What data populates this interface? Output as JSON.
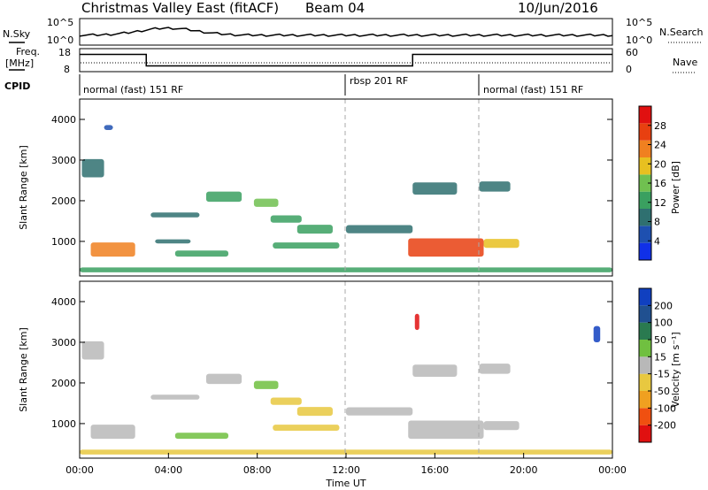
{
  "header": {
    "radar": "Christmas Valley East (fitACF)",
    "beam": "Beam 04",
    "date": "10/Jun/2016"
  },
  "noise_panel": {
    "left_label": "N.Sky",
    "right_label": "N.Search",
    "left_ticks": [
      "10^5",
      "10^0"
    ],
    "right_ticks": [
      "10^5",
      "10^0"
    ]
  },
  "freq_panel": {
    "left_label": "Freq.",
    "left_unit": "[MHz]",
    "right_label": "Nave",
    "left_ticks": [
      "18",
      "8"
    ],
    "right_ticks": [
      "60",
      "0"
    ],
    "freq_segments": [
      {
        "t0": 0,
        "t1": 3,
        "mhz": 15.5
      },
      {
        "t0": 3,
        "t1": 15,
        "mhz": 10.5
      },
      {
        "t0": 15,
        "t1": 24,
        "mhz": 15.5
      }
    ]
  },
  "cpid": {
    "label": "CPID",
    "segments": [
      {
        "start": 0,
        "label": "normal (fast) 151 RF"
      },
      {
        "start": 12,
        "label": "rbsp 201 RF"
      },
      {
        "start": 18,
        "label": "normal (fast) 151 RF"
      }
    ]
  },
  "colors": {
    "power": [
      "#1030e8",
      "#1e50b0",
      "#2f7070",
      "#3aa060",
      "#70c050",
      "#e8c020",
      "#f08020",
      "#e84010",
      "#e01010"
    ],
    "velocity": [
      "#e01010",
      "#f05010",
      "#f0a020",
      "#e8c840",
      "#b8b8b8",
      "#70c040",
      "#2a7a50",
      "#205090",
      "#1040c0"
    ]
  },
  "chart_data": [
    {
      "type": "heatmap",
      "title": "",
      "ylabel": "Slant Range [km]",
      "xlabel": "",
      "xlim": [
        0,
        24
      ],
      "ylim": [
        150,
        4500
      ],
      "y_ticks": [
        1000,
        2000,
        3000,
        4000
      ],
      "colorbar": {
        "label": "Power [dB]",
        "min": 0,
        "max": 32,
        "ticks": [
          4,
          8,
          12,
          16,
          20,
          24,
          28
        ]
      },
      "cells": [
        {
          "t": 1.5,
          "r": 800,
          "dt": 2.0,
          "dr": 350,
          "v": 24
        },
        {
          "t": 5.5,
          "r": 700,
          "dt": 2.4,
          "dr": 150,
          "v": 12
        },
        {
          "t": 4.2,
          "r": 1000,
          "dt": 1.6,
          "dr": 100,
          "v": 8
        },
        {
          "t": 4.3,
          "r": 1650,
          "dt": 2.2,
          "dr": 120,
          "v": 10
        },
        {
          "t": 6.5,
          "r": 2100,
          "dt": 1.6,
          "dr": 250,
          "v": 12
        },
        {
          "t": 8.4,
          "r": 1950,
          "dt": 1.1,
          "dr": 200,
          "v": 16
        },
        {
          "t": 9.3,
          "r": 1550,
          "dt": 1.4,
          "dr": 180,
          "v": 12
        },
        {
          "t": 10.6,
          "r": 1300,
          "dt": 1.6,
          "dr": 220,
          "v": 12
        },
        {
          "t": 10.2,
          "r": 900,
          "dt": 3.0,
          "dr": 150,
          "v": 12
        },
        {
          "t": 16.5,
          "r": 850,
          "dt": 3.4,
          "dr": 450,
          "v": 26
        },
        {
          "t": 19.0,
          "r": 950,
          "dt": 1.6,
          "dr": 220,
          "v": 18
        },
        {
          "t": 13.5,
          "r": 1300,
          "dt": 3.0,
          "dr": 200,
          "v": 8
        },
        {
          "t": 18.7,
          "r": 2350,
          "dt": 1.4,
          "dr": 250,
          "v": 10
        },
        {
          "t": 16.0,
          "r": 2300,
          "dt": 2.0,
          "dr": 300,
          "v": 8
        },
        {
          "t": 0.6,
          "r": 2800,
          "dt": 1.0,
          "dr": 450,
          "v": 8
        },
        {
          "t": 1.3,
          "r": 3800,
          "dt": 0.4,
          "dr": 120,
          "v": 6
        },
        {
          "t": 12.0,
          "r": 300,
          "dt": 24,
          "dr": 120,
          "v": 14
        }
      ]
    },
    {
      "type": "heatmap",
      "title": "",
      "ylabel": "Slant Range [km]",
      "xlabel": "Time UT",
      "xlim": [
        0,
        24
      ],
      "ylim": [
        150,
        4500
      ],
      "y_ticks": [
        1000,
        2000,
        3000,
        4000
      ],
      "x_ticks": [
        "00:00",
        "04:00",
        "08:00",
        "12:00",
        "16:00",
        "20:00",
        "00:00"
      ],
      "colorbar": {
        "label": "Velocity [m s⁻¹]",
        "min": -250,
        "max": 250,
        "ticks": [
          -200,
          -100,
          -50,
          -15,
          15,
          50,
          100,
          200
        ]
      },
      "cells": [
        {
          "t": 1.5,
          "r": 800,
          "dt": 2.0,
          "dr": 350,
          "v": 0
        },
        {
          "t": 5.5,
          "r": 700,
          "dt": 2.4,
          "dr": 150,
          "v": 30
        },
        {
          "t": 4.3,
          "r": 1650,
          "dt": 2.2,
          "dr": 120,
          "v": 0
        },
        {
          "t": 6.5,
          "r": 2100,
          "dt": 1.6,
          "dr": 250,
          "v": 0
        },
        {
          "t": 8.4,
          "r": 1950,
          "dt": 1.1,
          "dr": 200,
          "v": 30
        },
        {
          "t": 9.3,
          "r": 1550,
          "dt": 1.4,
          "dr": 180,
          "v": -40
        },
        {
          "t": 10.6,
          "r": 1300,
          "dt": 1.6,
          "dr": 220,
          "v": -40
        },
        {
          "t": 10.2,
          "r": 900,
          "dt": 3.0,
          "dr": 150,
          "v": -40
        },
        {
          "t": 16.5,
          "r": 850,
          "dt": 3.4,
          "dr": 450,
          "v": 0
        },
        {
          "t": 19.0,
          "r": 950,
          "dt": 1.6,
          "dr": 220,
          "v": 0
        },
        {
          "t": 13.5,
          "r": 1300,
          "dt": 3.0,
          "dr": 200,
          "v": 0
        },
        {
          "t": 18.7,
          "r": 2350,
          "dt": 1.4,
          "dr": 250,
          "v": 0
        },
        {
          "t": 16.0,
          "r": 2300,
          "dt": 2.0,
          "dr": 300,
          "v": 0
        },
        {
          "t": 0.6,
          "r": 2800,
          "dt": 1.0,
          "dr": 450,
          "v": 0
        },
        {
          "t": 15.2,
          "r": 3500,
          "dt": 0.2,
          "dr": 400,
          "v": -220
        },
        {
          "t": 23.3,
          "r": 3200,
          "dt": 0.3,
          "dr": 400,
          "v": 220
        },
        {
          "t": 12.0,
          "r": 300,
          "dt": 24,
          "dr": 120,
          "v": -30
        }
      ]
    }
  ]
}
